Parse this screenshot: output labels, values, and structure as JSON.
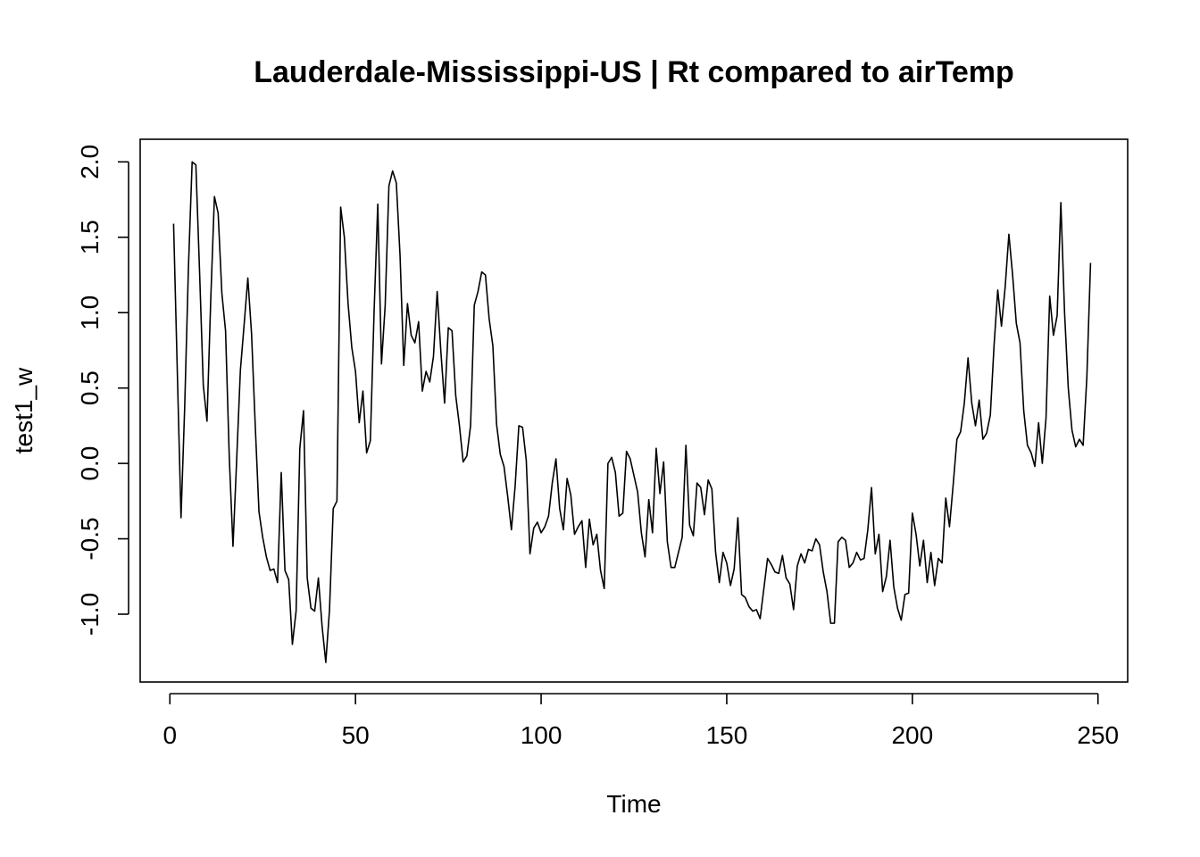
{
  "chart_data": {
    "type": "line",
    "title": "Lauderdale-Mississippi-US | Rt compared to airTemp",
    "xlabel": "Time",
    "ylabel": "test1_w",
    "xlim": [
      -8,
      258
    ],
    "ylim": [
      -1.45,
      2.15
    ],
    "xticks": [
      0,
      50,
      100,
      150,
      200,
      250
    ],
    "xtick_labels": [
      "0",
      "50",
      "100",
      "150",
      "200",
      "250"
    ],
    "yticks": [
      -1.0,
      -0.5,
      0.0,
      0.5,
      1.0,
      1.5,
      2.0
    ],
    "ytick_labels": [
      "-1.0",
      "-0.5",
      "0.0",
      "0.5",
      "1.0",
      "1.5",
      "2.0"
    ],
    "grid": false,
    "legend": "none",
    "series": [
      {
        "color": "#000000",
        "x": [
          1,
          2,
          3,
          4,
          5,
          6,
          7,
          8,
          9,
          10,
          11,
          12,
          13,
          14,
          15,
          16,
          17,
          18,
          19,
          20,
          21,
          22,
          23,
          24,
          25,
          26,
          27,
          28,
          29,
          30,
          31,
          32,
          33,
          34,
          35,
          36,
          37,
          38,
          39,
          40,
          41,
          42,
          43,
          44,
          45,
          46,
          47,
          48,
          49,
          50,
          51,
          52,
          53,
          54,
          55,
          56,
          57,
          58,
          59,
          60,
          61,
          62,
          63,
          64,
          65,
          66,
          67,
          68,
          69,
          70,
          71,
          72,
          73,
          74,
          75,
          76,
          77,
          78,
          79,
          80,
          81,
          82,
          83,
          84,
          85,
          86,
          87,
          88,
          89,
          90,
          91,
          92,
          93,
          94,
          95,
          96,
          97,
          98,
          99,
          100,
          101,
          102,
          103,
          104,
          105,
          106,
          107,
          108,
          109,
          110,
          111,
          112,
          113,
          114,
          115,
          116,
          117,
          118,
          119,
          120,
          121,
          122,
          123,
          124,
          125,
          126,
          127,
          128,
          129,
          130,
          131,
          132,
          133,
          134,
          135,
          136,
          137,
          138,
          139,
          140,
          141,
          142,
          143,
          144,
          145,
          146,
          147,
          148,
          149,
          150,
          151,
          152,
          153,
          154,
          155,
          156,
          157,
          158,
          159,
          160,
          161,
          162,
          163,
          164,
          165,
          166,
          167,
          168,
          169,
          170,
          171,
          172,
          173,
          174,
          175,
          176,
          177,
          178,
          179,
          180,
          181,
          182,
          183,
          184,
          185,
          186,
          187,
          188,
          189,
          190,
          191,
          192,
          193,
          194,
          195,
          196,
          197,
          198,
          199,
          200,
          201,
          202,
          203,
          204,
          205,
          206,
          207,
          208,
          209,
          210,
          211,
          212,
          213,
          214,
          215,
          216,
          217,
          218,
          219,
          220,
          221,
          222,
          223,
          224,
          225,
          226,
          227,
          228,
          229,
          230,
          231,
          232,
          233,
          234,
          235,
          236,
          237,
          238,
          239,
          240,
          241,
          242,
          243,
          244,
          245,
          246,
          247,
          248
        ],
        "y": [
          1.59,
          0.61,
          -0.36,
          0.38,
          1.3,
          2.0,
          1.98,
          1.27,
          0.52,
          0.28,
          1.08,
          1.77,
          1.66,
          1.13,
          0.88,
          0.04,
          -0.55,
          0.03,
          0.62,
          0.92,
          1.23,
          0.86,
          0.25,
          -0.32,
          -0.49,
          -0.62,
          -0.71,
          -0.7,
          -0.79,
          -0.06,
          -0.71,
          -0.77,
          -1.2,
          -0.98,
          0.1,
          0.35,
          -0.76,
          -0.96,
          -0.98,
          -0.76,
          -1.08,
          -1.32,
          -0.97,
          -0.3,
          -0.25,
          1.7,
          1.5,
          1.06,
          0.77,
          0.61,
          0.27,
          0.48,
          0.07,
          0.15,
          1.0,
          1.72,
          0.66,
          1.05,
          1.84,
          1.94,
          1.86,
          1.38,
          0.65,
          1.06,
          0.85,
          0.8,
          0.94,
          0.48,
          0.61,
          0.54,
          0.71,
          1.14,
          0.74,
          0.4,
          0.9,
          0.88,
          0.45,
          0.25,
          0.01,
          0.05,
          0.25,
          1.05,
          1.14,
          1.27,
          1.25,
          0.96,
          0.78,
          0.26,
          0.06,
          -0.02,
          -0.22,
          -0.44,
          -0.15,
          0.25,
          0.24,
          0.02,
          -0.6,
          -0.43,
          -0.39,
          -0.46,
          -0.42,
          -0.35,
          -0.13,
          0.03,
          -0.3,
          -0.44,
          -0.1,
          -0.21,
          -0.47,
          -0.42,
          -0.38,
          -0.69,
          -0.37,
          -0.54,
          -0.47,
          -0.71,
          -0.83,
          0.0,
          0.04,
          -0.06,
          -0.35,
          -0.33,
          0.08,
          0.03,
          -0.08,
          -0.19,
          -0.46,
          -0.62,
          -0.24,
          -0.46,
          0.1,
          -0.2,
          0.01,
          -0.52,
          -0.69,
          -0.69,
          -0.59,
          -0.49,
          0.12,
          -0.41,
          -0.48,
          -0.13,
          -0.16,
          -0.34,
          -0.11,
          -0.17,
          -0.59,
          -0.79,
          -0.59,
          -0.66,
          -0.81,
          -0.7,
          -0.36,
          -0.87,
          -0.89,
          -0.95,
          -0.98,
          -0.97,
          -1.03,
          -0.83,
          -0.63,
          -0.67,
          -0.72,
          -0.73,
          -0.61,
          -0.76,
          -0.8,
          -0.97,
          -0.68,
          -0.6,
          -0.66,
          -0.57,
          -0.58,
          -0.5,
          -0.54,
          -0.72,
          -0.85,
          -1.06,
          -1.06,
          -0.52,
          -0.49,
          -0.51,
          -0.69,
          -0.66,
          -0.59,
          -0.64,
          -0.63,
          -0.44,
          -0.16,
          -0.6,
          -0.47,
          -0.85,
          -0.75,
          -0.51,
          -0.82,
          -0.96,
          -1.04,
          -0.87,
          -0.86,
          -0.33,
          -0.47,
          -0.68,
          -0.51,
          -0.79,
          -0.59,
          -0.81,
          -0.63,
          -0.66,
          -0.23,
          -0.42,
          -0.14,
          0.16,
          0.21,
          0.4,
          0.7,
          0.4,
          0.25,
          0.42,
          0.16,
          0.2,
          0.32,
          0.78,
          1.15,
          0.91,
          1.17,
          1.52,
          1.25,
          0.93,
          0.8,
          0.35,
          0.12,
          0.07,
          -0.02,
          0.27,
          0.0,
          0.3,
          1.11,
          0.85,
          0.98,
          1.73,
          1.0,
          0.5,
          0.22,
          0.11,
          0.16,
          0.12,
          0.57,
          1.33
        ]
      }
    ]
  }
}
